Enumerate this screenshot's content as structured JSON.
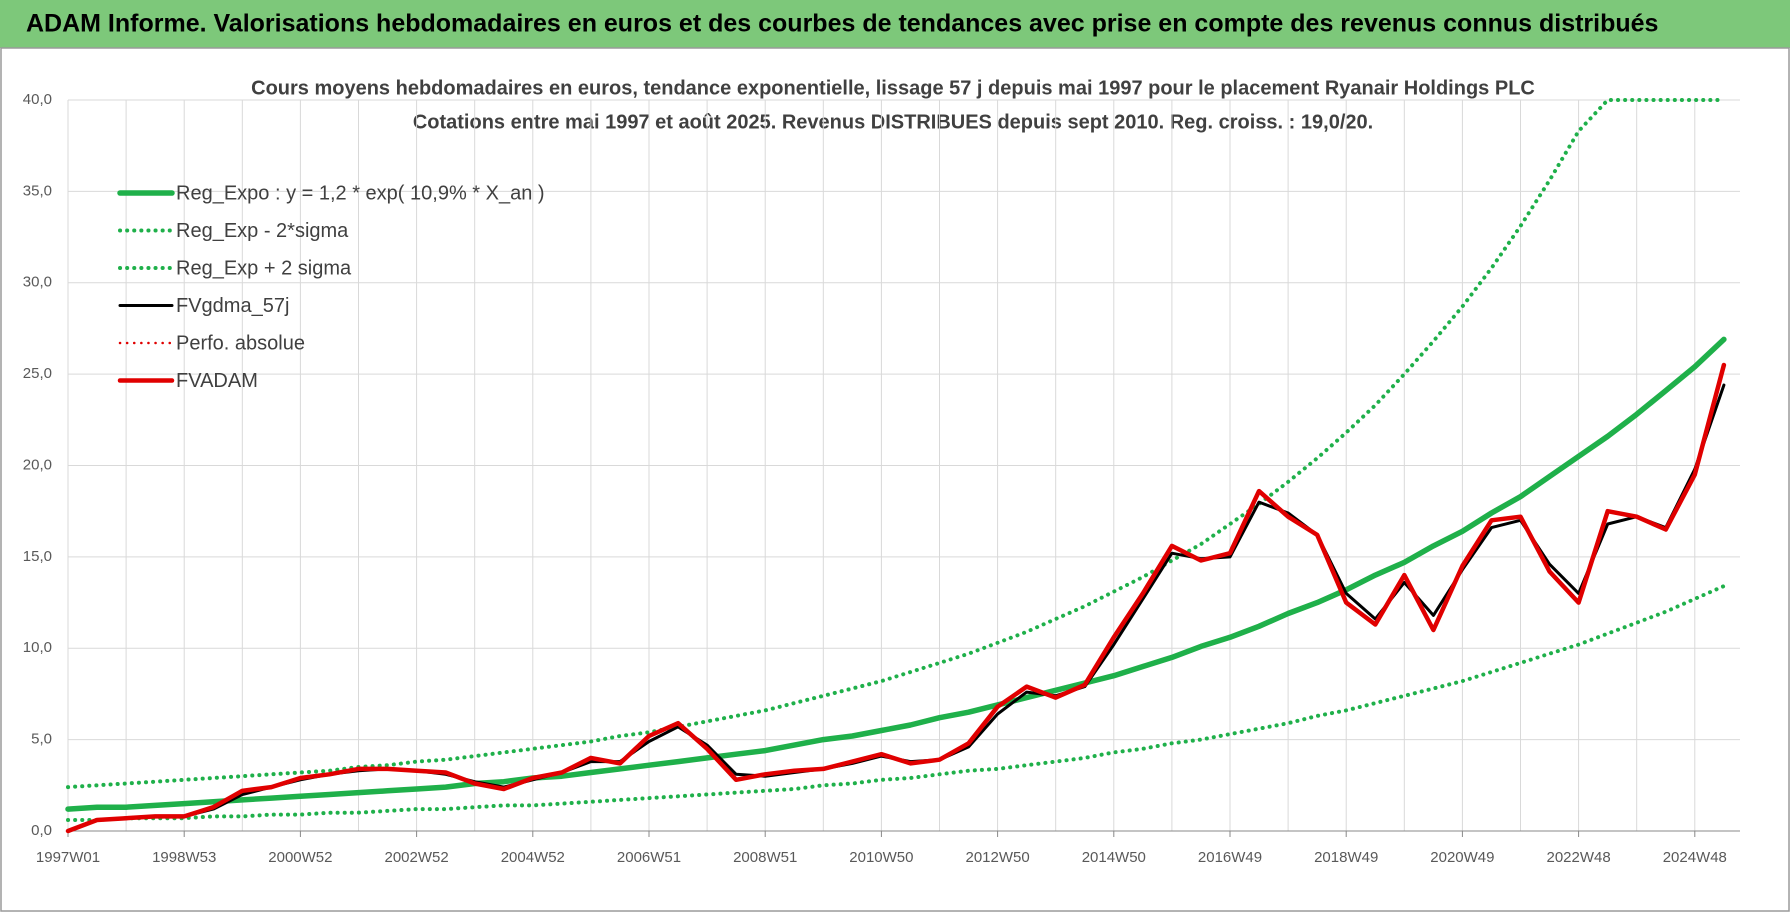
{
  "banner": "ADAM Informe. Valorisations hebdomadaires en euros et des courbes de tendances avec prise en compte des revenus connus distribués",
  "chart_data": {
    "type": "line",
    "title": "Cours moyens hebdomadaires en euros, tendance exponentielle, lissage 57 j depuis mai 1997 pour le placement Ryanair Holdings PLC",
    "subtitle": "Cotations entre mai 1997 et août 2025.  Revenus DISTRIBUES depuis sept 2010. Reg. croiss. : 19,0/20.",
    "categories": [
      "1997W01",
      null,
      null,
      null,
      "1998W53",
      null,
      null,
      null,
      "2000W52",
      null,
      null,
      null,
      "2002W52",
      null,
      null,
      null,
      "2004W52",
      null,
      null,
      null,
      "2006W51",
      null,
      null,
      null,
      "2008W51",
      null,
      null,
      null,
      "2010W50",
      null,
      null,
      null,
      "2012W50",
      null,
      null,
      null,
      "2014W50",
      null,
      null,
      null,
      "2016W49",
      null,
      null,
      null,
      "2018W49",
      null,
      null,
      null,
      "2020W49",
      null,
      null,
      null,
      "2022W48",
      null,
      null,
      null,
      "2024W48",
      null
    ],
    "ylim": [
      0,
      40
    ],
    "yticks": [
      {
        "value": 0,
        "label": "0,0"
      },
      {
        "value": 5,
        "label": "5,0"
      },
      {
        "value": 10,
        "label": "10,0"
      },
      {
        "value": 15,
        "label": "15,0"
      },
      {
        "value": 20,
        "label": "20,0"
      },
      {
        "value": 25,
        "label": "25,0"
      },
      {
        "value": 30,
        "label": "30,0"
      },
      {
        "value": 35,
        "label": "35,0"
      },
      {
        "value": 40,
        "label": "40,0"
      }
    ],
    "grid": true,
    "legend": "upper left",
    "series": [
      {
        "name": "Reg_Expo : y = 1,2 * exp( 10,9% *  X_an )",
        "color": "#1fb04a",
        "style": "solid",
        "values": [
          1.2,
          1.3,
          1.3,
          1.4,
          1.5,
          1.6,
          1.7,
          1.8,
          1.9,
          2.0,
          2.1,
          2.2,
          2.3,
          2.4,
          2.6,
          2.7,
          2.9,
          3.0,
          3.2,
          3.4,
          3.6,
          3.8,
          4.0,
          4.2,
          4.4,
          4.7,
          5.0,
          5.2,
          5.5,
          5.8,
          6.2,
          6.5,
          6.9,
          7.3,
          7.7,
          8.1,
          8.5,
          9.0,
          9.5,
          10.1,
          10.6,
          11.2,
          11.9,
          12.5,
          13.2,
          14.0,
          14.7,
          15.6,
          16.4,
          17.4,
          18.3,
          19.4,
          20.5,
          21.6,
          22.8,
          24.1,
          25.4,
          26.9
        ]
      },
      {
        "name": "Reg_Exp - 2*sigma",
        "color": "#1fb04a",
        "style": "dotted",
        "values": [
          0.6,
          0.6,
          0.7,
          0.7,
          0.7,
          0.8,
          0.8,
          0.9,
          0.9,
          1.0,
          1.0,
          1.1,
          1.2,
          1.2,
          1.3,
          1.4,
          1.4,
          1.5,
          1.6,
          1.7,
          1.8,
          1.9,
          2.0,
          2.1,
          2.2,
          2.3,
          2.5,
          2.6,
          2.8,
          2.9,
          3.1,
          3.3,
          3.4,
          3.6,
          3.8,
          4.0,
          4.3,
          4.5,
          4.8,
          5.0,
          5.3,
          5.6,
          5.9,
          6.3,
          6.6,
          7.0,
          7.4,
          7.8,
          8.2,
          8.7,
          9.2,
          9.7,
          10.2,
          10.8,
          11.4,
          12.0,
          12.7,
          13.4
        ]
      },
      {
        "name": "Reg_Exp + 2 sigma",
        "color": "#1fb04a",
        "style": "dotted",
        "values": [
          2.4,
          2.5,
          2.6,
          2.7,
          2.8,
          2.9,
          3.0,
          3.1,
          3.2,
          3.3,
          3.5,
          3.6,
          3.8,
          3.9,
          4.1,
          4.3,
          4.5,
          4.7,
          4.9,
          5.2,
          5.4,
          5.7,
          6.0,
          6.3,
          6.6,
          7.0,
          7.4,
          7.8,
          8.2,
          8.7,
          9.2,
          9.7,
          10.3,
          10.9,
          11.6,
          12.3,
          13.1,
          13.9,
          14.8,
          15.7,
          16.8,
          17.9,
          19.1,
          20.4,
          21.8,
          23.3,
          25.0,
          26.8,
          28.7,
          30.8,
          33.1,
          35.6,
          38.3,
          40.0,
          40.0,
          40.0,
          40.0,
          40.0
        ]
      },
      {
        "name": "FVgdma_57j",
        "color": "#000000",
        "style": "solid",
        "values": [
          0,
          0.6,
          0.7,
          0.8,
          0.8,
          1.2,
          2.0,
          2.4,
          2.8,
          3.1,
          3.3,
          3.4,
          3.3,
          3.1,
          2.7,
          2.4,
          2.8,
          3.2,
          3.8,
          3.8,
          4.9,
          5.7,
          4.7,
          3.1,
          3.0,
          3.2,
          3.4,
          3.7,
          4.1,
          3.8,
          3.9,
          4.6,
          6.4,
          7.6,
          7.4,
          7.9,
          10.2,
          12.7,
          15.2,
          14.9,
          15.0,
          18.0,
          17.4,
          16.2,
          13.0,
          11.6,
          13.6,
          11.8,
          14.3,
          16.6,
          17.0,
          14.6,
          13.0,
          16.8,
          17.2,
          16.6,
          19.8,
          24.4
        ]
      },
      {
        "name": "Perfo. absolue",
        "color": "#e00000",
        "style": "dotted",
        "values": [
          0,
          0.6,
          0.7,
          0.8,
          0.8,
          1.3,
          2.2,
          2.4,
          2.9,
          3.1,
          3.4,
          3.4,
          3.3,
          3.2,
          2.6,
          2.3,
          2.9,
          3.2,
          4.0,
          3.7,
          5.2,
          5.9,
          4.5,
          2.8,
          3.1,
          3.3,
          3.4,
          3.8,
          4.2,
          3.7,
          3.9,
          4.8,
          6.8,
          7.9,
          7.3,
          8.0,
          10.6,
          13.0,
          15.6,
          14.8,
          15.2,
          18.6,
          17.2,
          16.2,
          12.5,
          11.3,
          14.0,
          11.0,
          14.5,
          17.0,
          17.2,
          14.2,
          12.5,
          17.5,
          17.2,
          16.5,
          19.5,
          25.5
        ]
      },
      {
        "name": "FVADAM",
        "color": "#e00000",
        "style": "solid",
        "values": [
          0,
          0.6,
          0.7,
          0.8,
          0.8,
          1.3,
          2.2,
          2.4,
          2.9,
          3.1,
          3.4,
          3.4,
          3.3,
          3.2,
          2.6,
          2.3,
          2.9,
          3.2,
          4.0,
          3.7,
          5.2,
          5.9,
          4.5,
          2.8,
          3.1,
          3.3,
          3.4,
          3.8,
          4.2,
          3.7,
          3.9,
          4.8,
          6.8,
          7.9,
          7.3,
          8.0,
          10.6,
          13.0,
          15.6,
          14.8,
          15.2,
          18.6,
          17.2,
          16.2,
          12.5,
          11.3,
          14.0,
          11.0,
          14.5,
          17.0,
          17.2,
          14.2,
          12.5,
          17.5,
          17.2,
          16.5,
          19.5,
          25.5
        ]
      }
    ]
  }
}
